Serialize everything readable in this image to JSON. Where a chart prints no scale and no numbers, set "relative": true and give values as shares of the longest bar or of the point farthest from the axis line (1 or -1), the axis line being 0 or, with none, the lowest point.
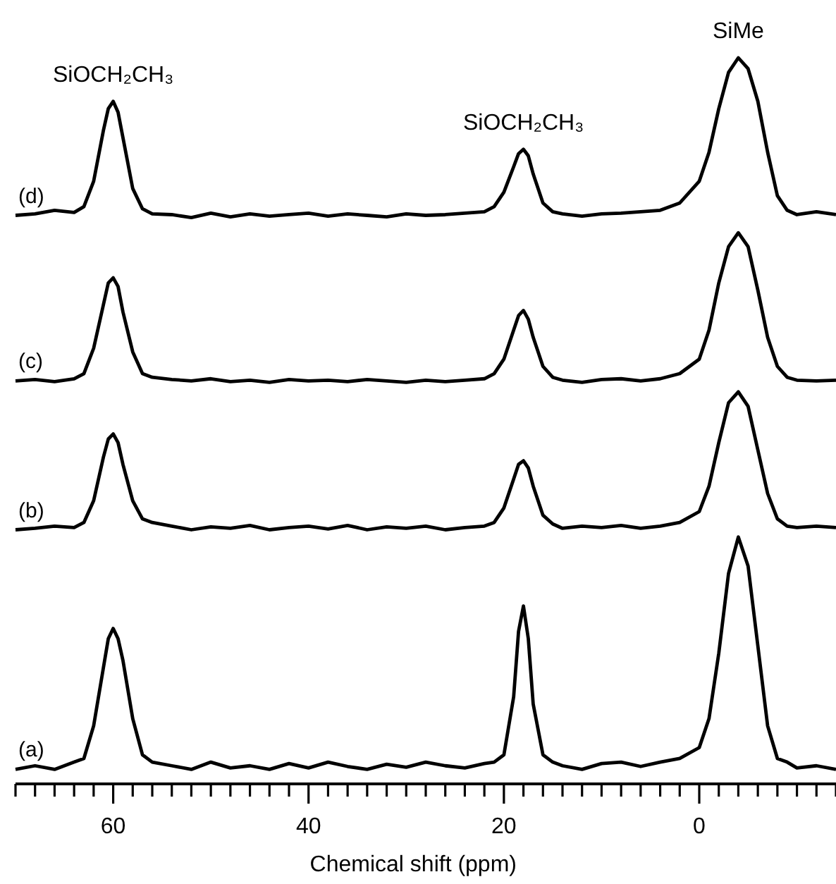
{
  "chart_data": {
    "type": "line",
    "relative": true,
    "xlabel": "Chemical shift (ppm)",
    "xlim": [
      70,
      -14
    ],
    "xticks": [
      {
        "value": 70,
        "label": null
      },
      {
        "value": 68,
        "label": null
      },
      {
        "value": 66,
        "label": null
      },
      {
        "value": 64,
        "label": null
      },
      {
        "value": 62,
        "label": null
      },
      60,
      {
        "value": 58,
        "label": null
      },
      {
        "value": 56,
        "label": null
      },
      {
        "value": 54,
        "label": null
      },
      {
        "value": 52,
        "label": null
      },
      {
        "value": 50,
        "label": null
      },
      {
        "value": 48,
        "label": null
      },
      {
        "value": 46,
        "label": null
      },
      {
        "value": 44,
        "label": null
      },
      {
        "value": 42,
        "label": null
      },
      40,
      {
        "value": 38,
        "label": null
      },
      {
        "value": 36,
        "label": null
      },
      {
        "value": 34,
        "label": null
      },
      {
        "value": 32,
        "label": null
      },
      {
        "value": 30,
        "label": null
      },
      {
        "value": 28,
        "label": null
      },
      {
        "value": 26,
        "label": null
      },
      {
        "value": 24,
        "label": null
      },
      {
        "value": 22,
        "label": null
      },
      20,
      {
        "value": 18,
        "label": null
      },
      {
        "value": 16,
        "label": null
      },
      {
        "value": 14,
        "label": null
      },
      {
        "value": 12,
        "label": null
      },
      {
        "value": 10,
        "label": null
      },
      {
        "value": 8,
        "label": null
      },
      {
        "value": 6,
        "label": null
      },
      {
        "value": 4,
        "label": null
      },
      {
        "value": 2,
        "label": null
      },
      0,
      {
        "value": -2,
        "label": null
      },
      {
        "value": -4,
        "label": null
      },
      {
        "value": -6,
        "label": null
      },
      {
        "value": -8,
        "label": null
      },
      {
        "value": -10,
        "label": null
      },
      {
        "value": -12,
        "label": null
      },
      {
        "value": -14,
        "label": null
      }
    ],
    "x": [
      70,
      68,
      66,
      64,
      63,
      62,
      61,
      60.5,
      60,
      59.5,
      59,
      58,
      57,
      56,
      54,
      52,
      50,
      48,
      46,
      44,
      42,
      40,
      38,
      36,
      34,
      32,
      30,
      28,
      26,
      24,
      22,
      21,
      20,
      19,
      18.5,
      18,
      17.5,
      17,
      16,
      15,
      14,
      12,
      10,
      8,
      6,
      4,
      2,
      0,
      -1,
      -2,
      -3,
      -4,
      -5,
      -6,
      -7,
      -8,
      -9,
      -10,
      -12,
      -14
    ],
    "grid": false,
    "marker": "none",
    "line_style": "solid",
    "series": [
      {
        "name": "(a)",
        "color": "#000000",
        "values": [
          0.02,
          0.025,
          0.02,
          0.03,
          0.035,
          0.08,
          0.16,
          0.2,
          0.214,
          0.2,
          0.17,
          0.09,
          0.04,
          0.03,
          0.025,
          0.02,
          0.03,
          0.022,
          0.025,
          0.02,
          0.028,
          0.022,
          0.03,
          0.024,
          0.02,
          0.027,
          0.023,
          0.03,
          0.025,
          0.022,
          0.028,
          0.03,
          0.04,
          0.12,
          0.21,
          0.245,
          0.2,
          0.11,
          0.04,
          0.03,
          0.025,
          0.02,
          0.028,
          0.03,
          0.024,
          0.03,
          0.035,
          0.05,
          0.09,
          0.18,
          0.29,
          0.34,
          0.3,
          0.19,
          0.08,
          0.035,
          0.03,
          0.022,
          0.025,
          0.02
        ]
      },
      {
        "name": "(b)",
        "color": "#000000",
        "values": [
          0.35,
          0.352,
          0.355,
          0.353,
          0.36,
          0.39,
          0.45,
          0.475,
          0.482,
          0.47,
          0.44,
          0.39,
          0.365,
          0.36,
          0.355,
          0.35,
          0.354,
          0.352,
          0.356,
          0.35,
          0.353,
          0.355,
          0.351,
          0.356,
          0.35,
          0.354,
          0.352,
          0.355,
          0.35,
          0.353,
          0.355,
          0.36,
          0.38,
          0.42,
          0.44,
          0.445,
          0.435,
          0.41,
          0.37,
          0.358,
          0.352,
          0.355,
          0.353,
          0.356,
          0.352,
          0.355,
          0.36,
          0.375,
          0.41,
          0.47,
          0.525,
          0.54,
          0.52,
          0.46,
          0.4,
          0.365,
          0.355,
          0.353,
          0.355,
          0.353
        ]
      },
      {
        "name": "(c)",
        "color": "#000000",
        "values": [
          0.555,
          0.557,
          0.554,
          0.558,
          0.565,
          0.6,
          0.66,
          0.69,
          0.697,
          0.685,
          0.65,
          0.595,
          0.565,
          0.56,
          0.557,
          0.555,
          0.558,
          0.554,
          0.556,
          0.553,
          0.557,
          0.555,
          0.556,
          0.554,
          0.557,
          0.555,
          0.553,
          0.556,
          0.554,
          0.556,
          0.558,
          0.565,
          0.585,
          0.625,
          0.645,
          0.652,
          0.64,
          0.615,
          0.575,
          0.56,
          0.556,
          0.553,
          0.557,
          0.558,
          0.555,
          0.558,
          0.565,
          0.585,
          0.625,
          0.69,
          0.74,
          0.759,
          0.74,
          0.68,
          0.615,
          0.575,
          0.56,
          0.556,
          0.555,
          0.556
        ]
      },
      {
        "name": "(d)",
        "color": "#000000",
        "values": [
          0.783,
          0.785,
          0.79,
          0.787,
          0.795,
          0.83,
          0.9,
          0.93,
          0.94,
          0.925,
          0.89,
          0.82,
          0.792,
          0.785,
          0.784,
          0.78,
          0.786,
          0.781,
          0.785,
          0.782,
          0.784,
          0.786,
          0.782,
          0.785,
          0.783,
          0.781,
          0.785,
          0.783,
          0.784,
          0.786,
          0.788,
          0.795,
          0.815,
          0.85,
          0.868,
          0.874,
          0.865,
          0.84,
          0.8,
          0.788,
          0.785,
          0.782,
          0.785,
          0.786,
          0.788,
          0.79,
          0.8,
          0.83,
          0.87,
          0.93,
          0.98,
          1.0,
          0.985,
          0.94,
          0.87,
          0.81,
          0.79,
          0.784,
          0.788,
          0.784
        ]
      }
    ],
    "annotations": [
      {
        "text": "SiOCH₂CH₃",
        "x": 60,
        "y": 0.94
      },
      {
        "text": "SiOCH₂CH₃",
        "x": 18,
        "y": 0.874
      },
      {
        "text": "SiMe",
        "x": -4,
        "y": 1.0
      }
    ]
  }
}
